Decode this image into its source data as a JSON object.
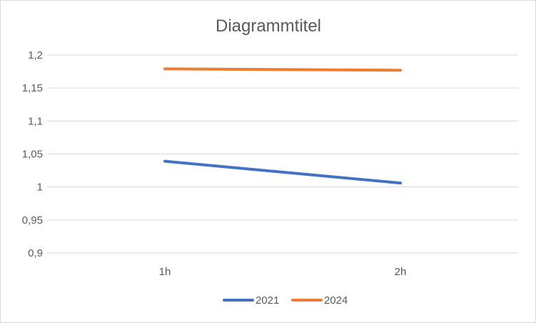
{
  "chart_data": {
    "type": "line",
    "title": "Diagrammtitel",
    "categories": [
      "1h",
      "2h"
    ],
    "series": [
      {
        "name": "2021",
        "values": [
          1.039,
          1.006
        ],
        "color": "#4472C4"
      },
      {
        "name": "2024",
        "values": [
          1.179,
          1.177
        ],
        "color": "#ED7D31"
      }
    ],
    "yticks": [
      "0,9",
      "0,95",
      "1",
      "1,05",
      "1,1",
      "1,15",
      "1,2"
    ],
    "ylim": [
      0.9,
      1.2
    ],
    "grid": true,
    "legend_position": "bottom"
  }
}
